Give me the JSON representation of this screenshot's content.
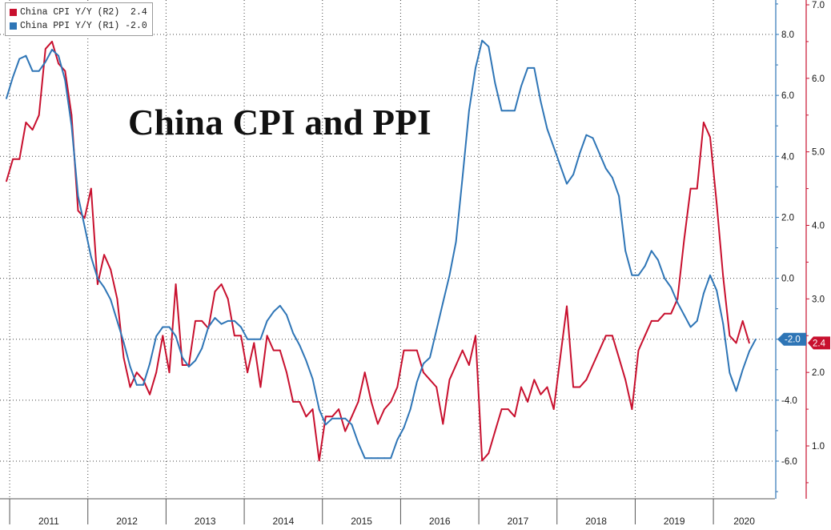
{
  "legend": {
    "cpi": {
      "label": "China CPI Y/Y (R2)",
      "value": "2.4",
      "color": "#c8102e"
    },
    "ppi": {
      "label": "China PPI Y/Y (R1)",
      "value": "-2.0",
      "color": "#2e75b6"
    }
  },
  "chart_data": {
    "type": "line",
    "title": "China CPI and PPI",
    "x_start": "2010-12",
    "frequency": "monthly",
    "year_labels": [
      "2011",
      "2012",
      "2013",
      "2014",
      "2015",
      "2016",
      "2017",
      "2018",
      "2019",
      "2020"
    ],
    "axes": {
      "r1": {
        "series": "China PPI Y/Y (R1)",
        "ylim": [
          -7.0,
          9.0
        ],
        "ticks": [
          "8.0",
          "6.0",
          "4.0",
          "2.0",
          "0.0",
          "-2.0",
          "-4.0",
          "-6.0"
        ],
        "tick_values": [
          8,
          6,
          4,
          2,
          0,
          -2,
          -4,
          -6
        ]
      },
      "r2": {
        "series": "China CPI Y/Y (R2)",
        "ylim": [
          0.2,
          7.2
        ],
        "ticks": [
          "7.0",
          "6.0",
          "5.0",
          "4.0",
          "3.0",
          "2.0",
          "1.0"
        ],
        "tick_values": [
          7,
          6,
          5,
          4,
          3,
          2,
          1
        ]
      }
    },
    "series": [
      {
        "name": "China CPI Y/Y (R2)",
        "axis": "r2",
        "color": "#c8102e",
        "last_label": "2.4",
        "values": [
          4.6,
          4.9,
          4.9,
          5.4,
          5.3,
          5.5,
          6.4,
          6.5,
          6.2,
          6.1,
          5.5,
          4.2,
          4.1,
          4.5,
          3.2,
          3.6,
          3.4,
          3.0,
          2.2,
          1.8,
          2.0,
          1.9,
          1.7,
          2.0,
          2.5,
          2.0,
          3.2,
          2.1,
          2.1,
          2.7,
          2.7,
          2.6,
          3.1,
          3.2,
          3.0,
          2.5,
          2.5,
          2.0,
          2.4,
          1.8,
          2.5,
          2.3,
          2.3,
          2.0,
          1.6,
          1.6,
          1.4,
          1.5,
          0.8,
          1.4,
          1.4,
          1.5,
          1.2,
          1.4,
          1.6,
          2.0,
          1.6,
          1.3,
          1.5,
          1.6,
          1.8,
          2.3,
          2.3,
          2.3,
          2.0,
          1.9,
          1.8,
          1.3,
          1.9,
          2.1,
          2.3,
          2.1,
          2.5,
          0.8,
          0.9,
          1.2,
          1.5,
          1.5,
          1.4,
          1.8,
          1.6,
          1.9,
          1.7,
          1.8,
          1.5,
          2.2,
          2.9,
          1.8,
          1.8,
          1.9,
          2.1,
          2.3,
          2.5,
          2.5,
          2.2,
          1.9,
          1.5,
          2.3,
          2.5,
          2.7,
          2.7,
          2.8,
          2.8,
          3.0,
          3.8,
          4.5,
          4.5,
          5.4,
          5.2,
          4.3,
          3.3,
          2.5,
          2.4,
          2.7,
          2.4
        ]
      },
      {
        "name": "China PPI Y/Y (R1)",
        "axis": "r1",
        "color": "#2e75b6",
        "last_label": "-2.0",
        "values": [
          5.9,
          6.6,
          7.2,
          7.3,
          6.8,
          6.8,
          7.1,
          7.5,
          7.3,
          6.5,
          5.0,
          2.7,
          1.7,
          0.7,
          0.0,
          -0.3,
          -0.7,
          -1.4,
          -2.1,
          -2.9,
          -3.5,
          -3.5,
          -2.8,
          -1.9,
          -1.6,
          -1.6,
          -1.9,
          -2.6,
          -2.9,
          -2.7,
          -2.3,
          -1.6,
          -1.3,
          -1.5,
          -1.4,
          -1.4,
          -1.6,
          -2.0,
          -2.0,
          -2.0,
          -1.4,
          -1.1,
          -0.9,
          -1.2,
          -1.8,
          -2.2,
          -2.7,
          -3.3,
          -4.3,
          -4.8,
          -4.6,
          -4.6,
          -4.6,
          -4.8,
          -5.4,
          -5.9,
          -5.9,
          -5.9,
          -5.9,
          -5.9,
          -5.3,
          -4.9,
          -4.3,
          -3.4,
          -2.8,
          -2.6,
          -1.7,
          -0.8,
          0.1,
          1.2,
          3.3,
          5.5,
          6.9,
          7.8,
          7.6,
          6.4,
          5.5,
          5.5,
          5.5,
          6.3,
          6.9,
          6.9,
          5.8,
          4.9,
          4.3,
          3.7,
          3.1,
          3.4,
          4.1,
          4.7,
          4.6,
          4.1,
          3.6,
          3.3,
          2.7,
          0.9,
          0.1,
          0.1,
          0.4,
          0.9,
          0.6,
          0.0,
          -0.3,
          -0.8,
          -1.2,
          -1.6,
          -1.4,
          -0.5,
          0.1,
          -0.4,
          -1.5,
          -3.1,
          -3.7,
          -3.0,
          -2.4,
          -2.0
        ]
      }
    ]
  }
}
